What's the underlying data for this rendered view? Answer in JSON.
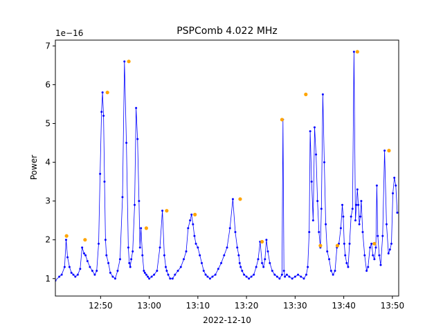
{
  "chart_data": {
    "type": "line",
    "title": "PSPComb 4.022 MHz",
    "xlabel": "2022-12-10",
    "ylabel": "Power",
    "y_scale_label": "1e−16",
    "x_ticks": [
      "12:50",
      "13:00",
      "13:10",
      "13:20",
      "13:30",
      "13:40",
      "13:50"
    ],
    "x_tick_values_min": [
      770,
      780,
      790,
      800,
      810,
      820,
      830
    ],
    "y_ticks": [
      "1",
      "2",
      "3",
      "4",
      "5",
      "6",
      "7"
    ],
    "y_tick_values": [
      1,
      2,
      3,
      4,
      5,
      6,
      7
    ],
    "xlim_min": [
      760.7,
      831.3
    ],
    "ylim": [
      0.55,
      7.15
    ],
    "grid": false,
    "legend": "none",
    "colors": {
      "line": "#0000ff",
      "peaks": "#ffa500"
    },
    "series": [
      {
        "style": "line-with-dots",
        "x_min": [
          760.7,
          761.5,
          762,
          762.6,
          762.9,
          763.2,
          763.6,
          764,
          764.4,
          764.8,
          765.3,
          765.8,
          766.2,
          766.6,
          766.9,
          767.3,
          767.8,
          768.3,
          768.8,
          769.2,
          769.6,
          769.9,
          770.2,
          770.4,
          770.6,
          770.8,
          771,
          771.2,
          771.6,
          772,
          772.5,
          773,
          773.5,
          774,
          774.5,
          774.9,
          775.3,
          775.7,
          775.9,
          776.1,
          776.3,
          776.6,
          777,
          777.3,
          777.6,
          777.9,
          778.1,
          778.3,
          778.6,
          778.9,
          779.1,
          779.4,
          779.7,
          780,
          780.5,
          781,
          781.6,
          782.2,
          782.7,
          783.1,
          783.4,
          783.6,
          783.9,
          784.3,
          784.8,
          785.3,
          785.9,
          786.5,
          787.1,
          787.6,
          788,
          788.4,
          788.7,
          789,
          789.3,
          789.6,
          790,
          790.4,
          790.8,
          791.2,
          791.6,
          792,
          792.5,
          793,
          793.6,
          794.2,
          794.8,
          795.4,
          796,
          796.6,
          797.2,
          797.7,
          798.1,
          798.4,
          798.6,
          798.8,
          799.1,
          799.5,
          800,
          800.5,
          801,
          801.5,
          802,
          802.4,
          802.8,
          803.2,
          803.5,
          803.8,
          804.1,
          804.4,
          804.8,
          805.3,
          805.8,
          806.3,
          806.8,
          807.3,
          807.5,
          807.7,
          807.9,
          808.3,
          808.8,
          809.4,
          810,
          810.6,
          811.2,
          811.8,
          812.3,
          812.6,
          812.9,
          813.1,
          813.4,
          813.7,
          814,
          814.3,
          814.6,
          814.9,
          815.2,
          815.4,
          815.7,
          816,
          816.3,
          816.6,
          817,
          817.4,
          817.8,
          818.2,
          818.6,
          819,
          819.4,
          819.7,
          819.9,
          820.1,
          820.3,
          820.6,
          820.9,
          821.2,
          821.5,
          821.8,
          822.1,
          822.4,
          822.6,
          822.8,
          823,
          823.2,
          823.4,
          823.6,
          823.9,
          824.3,
          824.7,
          825,
          825.4,
          825.7,
          826,
          826.3,
          826.6,
          826.8,
          827,
          827.3,
          827.6,
          828,
          828.4,
          828.8,
          829.2,
          829.5,
          829.8,
          830.1,
          830.4,
          830.7,
          831,
          831.3
        ],
        "values": [
          0.95,
          1.05,
          1.1,
          1.3,
          2.0,
          1.55,
          1.3,
          1.15,
          1.1,
          1.05,
          1.1,
          1.25,
          1.8,
          1.65,
          1.6,
          1.45,
          1.3,
          1.2,
          1.1,
          1.2,
          1.9,
          3.7,
          5.3,
          5.8,
          5.2,
          3.5,
          2.0,
          1.6,
          1.4,
          1.15,
          1.05,
          1.0,
          1.2,
          1.5,
          3.1,
          6.6,
          4.5,
          1.8,
          1.4,
          1.3,
          1.5,
          1.7,
          2.9,
          5.4,
          4.6,
          3.0,
          1.8,
          2.3,
          1.6,
          1.2,
          1.15,
          1.1,
          1.05,
          1.0,
          1.05,
          1.1,
          1.2,
          1.8,
          2.75,
          1.6,
          1.3,
          1.2,
          1.1,
          1.0,
          1.0,
          1.1,
          1.2,
          1.3,
          1.5,
          1.7,
          2.3,
          2.5,
          2.65,
          2.4,
          2.1,
          1.9,
          1.8,
          1.6,
          1.4,
          1.2,
          1.1,
          1.05,
          1.0,
          1.05,
          1.1,
          1.25,
          1.4,
          1.6,
          1.8,
          2.3,
          3.05,
          2.2,
          1.8,
          1.6,
          1.4,
          1.3,
          1.2,
          1.1,
          1.05,
          1.0,
          1.05,
          1.1,
          1.3,
          1.5,
          1.95,
          1.4,
          1.3,
          1.5,
          2.0,
          1.7,
          1.4,
          1.2,
          1.1,
          1.05,
          1.0,
          1.1,
          5.1,
          1.2,
          1.05,
          1.1,
          1.05,
          1.0,
          1.05,
          1.1,
          1.05,
          1.0,
          1.1,
          1.3,
          2.2,
          4.8,
          3.5,
          2.5,
          4.9,
          4.2,
          3.0,
          2.2,
          1.8,
          2.8,
          5.75,
          4.0,
          2.4,
          1.7,
          1.5,
          1.2,
          1.1,
          1.2,
          1.8,
          1.9,
          2.3,
          2.9,
          2.6,
          1.9,
          1.6,
          1.4,
          1.3,
          1.9,
          2.6,
          2.8,
          6.85,
          2.5,
          2.9,
          3.3,
          2.9,
          2.4,
          2.6,
          3.0,
          2.2,
          1.6,
          1.2,
          1.3,
          1.8,
          1.9,
          1.6,
          1.5,
          1.8,
          3.4,
          2.1,
          1.6,
          1.35,
          2.1,
          4.3,
          2.4,
          1.65,
          1.75,
          1.9,
          3.2,
          3.6,
          3.4,
          2.7
        ]
      },
      {
        "name": "peaks",
        "style": "markers",
        "x_min": [
          763.0,
          766.8,
          771.4,
          775.8,
          779.4,
          783.6,
          789.4,
          798.7,
          803.2,
          807.3,
          812.2,
          815.2,
          818.7,
          822.8,
          826.3,
          829.3
        ],
        "values": [
          2.1,
          2.0,
          5.8,
          6.6,
          2.3,
          2.75,
          2.65,
          3.05,
          1.95,
          5.1,
          5.75,
          1.85,
          1.85,
          6.85,
          1.9,
          4.3
        ]
      }
    ]
  }
}
